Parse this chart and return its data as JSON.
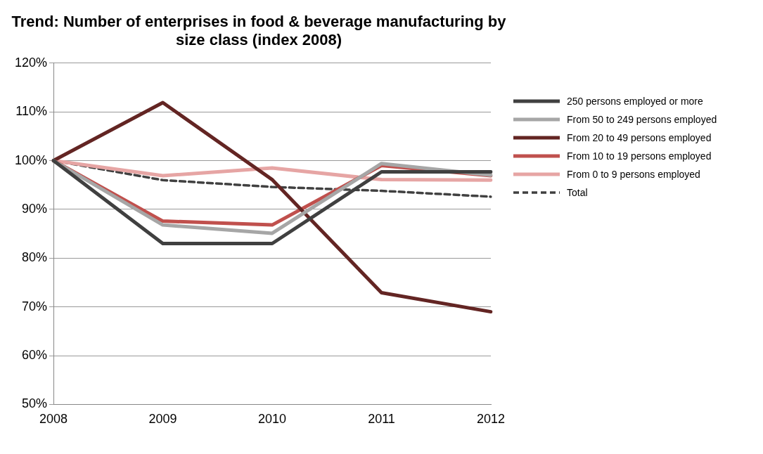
{
  "chart_data": {
    "type": "line",
    "title": "Trend: Number of enterprises in food & beverage manufacturing by size class (index 2008)",
    "categories": [
      "2008",
      "2009",
      "2010",
      "2011",
      "2012"
    ],
    "series": [
      {
        "name": "250 persons employed or more",
        "color": "#404040",
        "values": [
          100,
          83,
          83,
          97.7,
          97.7
        ]
      },
      {
        "name": "From 50 to 249 persons employed",
        "color": "#a6a6a6",
        "values": [
          100,
          86.8,
          85.1,
          99.4,
          97
        ]
      },
      {
        "name": "From 20 to 49 persons employed",
        "color": "#632523",
        "values": [
          100,
          111.9,
          96.1,
          72.9,
          69
        ]
      },
      {
        "name": "From 10 to 19 persons employed",
        "color": "#c0504d",
        "values": [
          100,
          87.6,
          86.8,
          99,
          96.9
        ]
      },
      {
        "name": "From 0 to 9 persons employed",
        "color": "#e6a5a4",
        "values": [
          100,
          96.9,
          98.5,
          96.1,
          96
        ]
      },
      {
        "name": "Total",
        "color": "#404040",
        "line_style": "dashed",
        "values": [
          100,
          96,
          94.6,
          93.8,
          92.6
        ]
      }
    ],
    "ylim": [
      50,
      120
    ],
    "yticks": [
      {
        "value": 50,
        "label": "50%"
      },
      {
        "value": 60,
        "label": "60%"
      },
      {
        "value": 70,
        "label": "70%"
      },
      {
        "value": 80,
        "label": "80%"
      },
      {
        "value": 90,
        "label": "90%"
      },
      {
        "value": 100,
        "label": "100%"
      },
      {
        "value": 110,
        "label": "110%"
      },
      {
        "value": 120,
        "label": "120%"
      }
    ],
    "grid": "y",
    "legend": "right",
    "marker": "none",
    "line_style": "solid"
  }
}
